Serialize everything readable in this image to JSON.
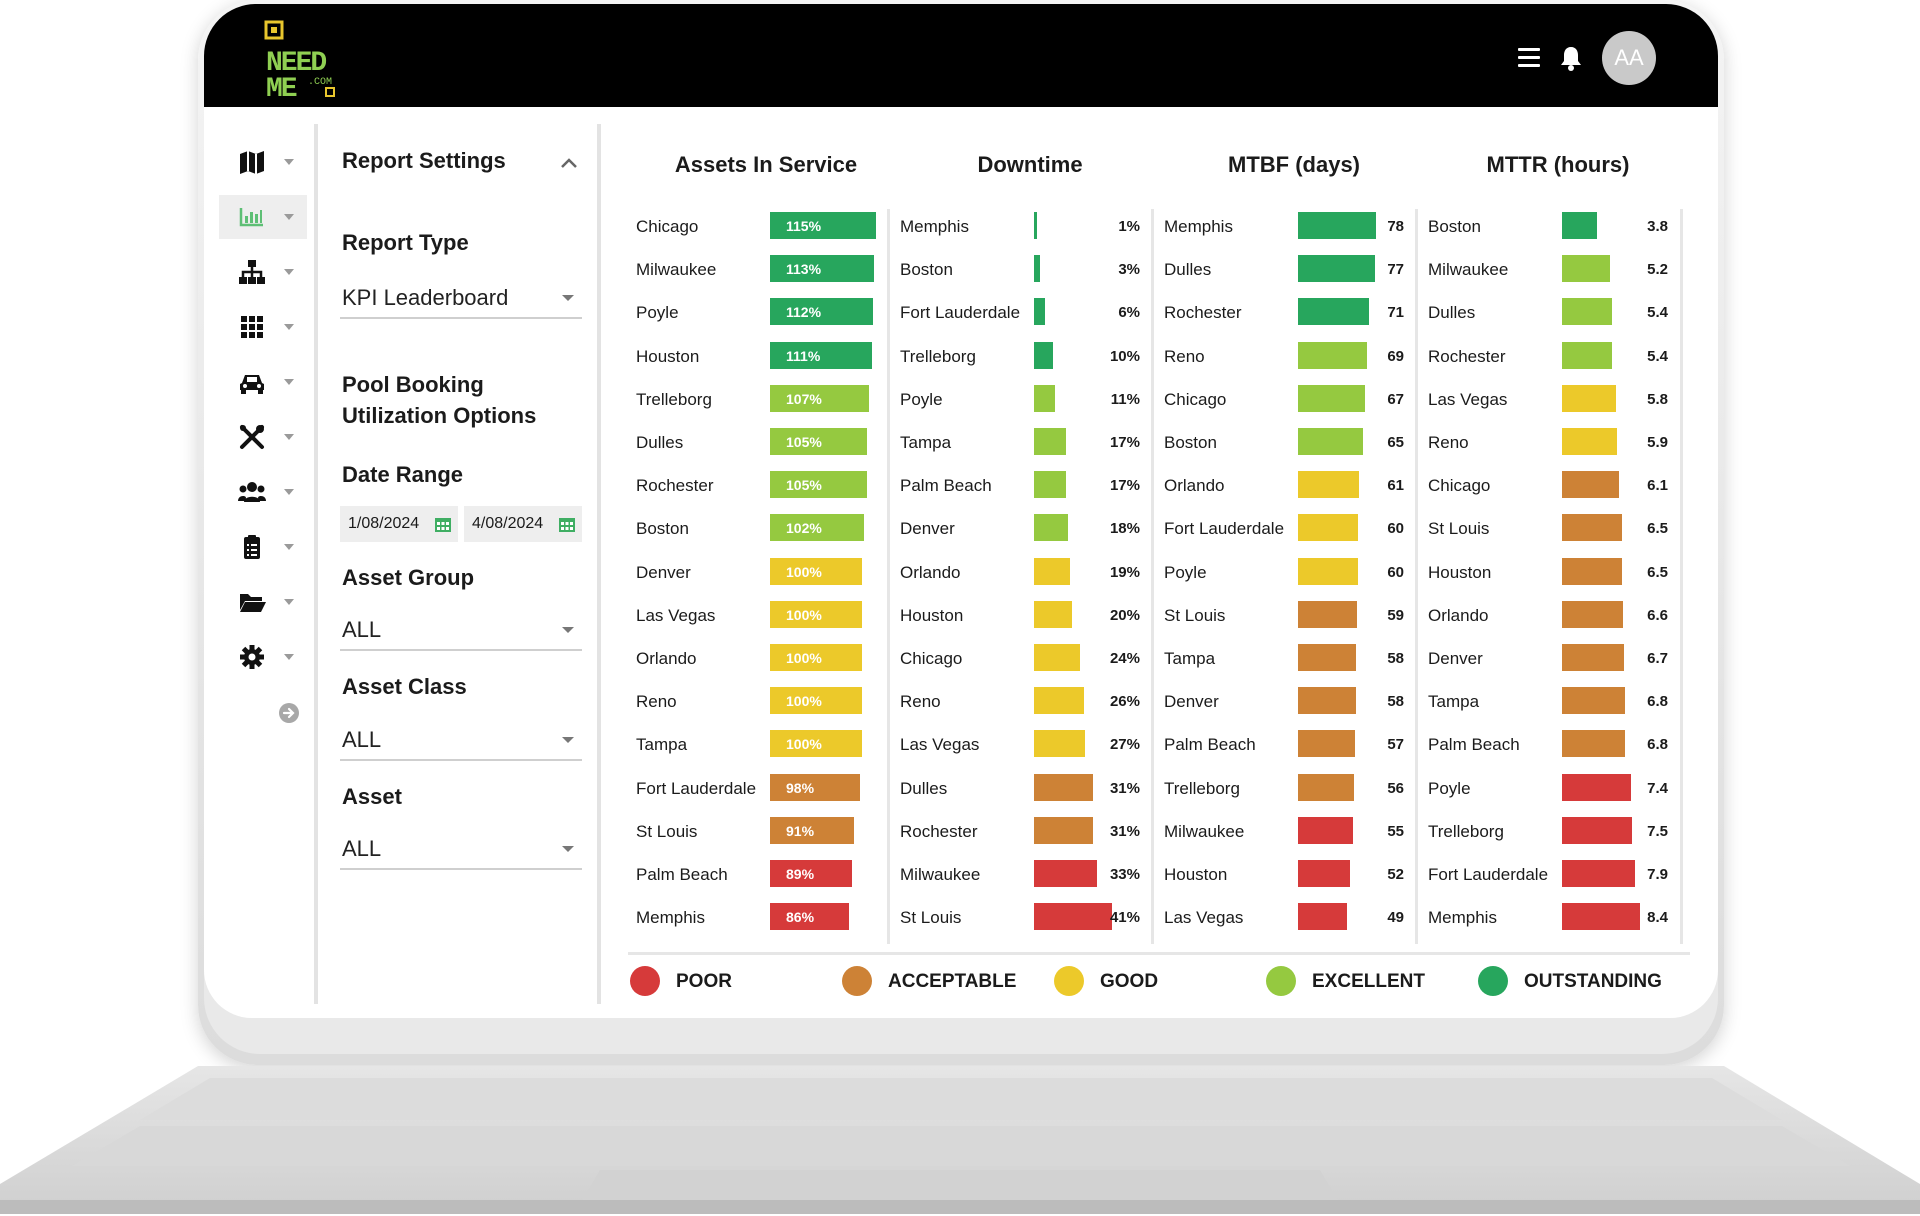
{
  "header": {
    "logo_text": "NEED ME .COM",
    "avatar_initials": "AA"
  },
  "rail": {
    "items": [
      {
        "icon": "map-icon"
      },
      {
        "icon": "bar-chart-icon"
      },
      {
        "icon": "org-chart-icon"
      },
      {
        "icon": "grid-icon"
      },
      {
        "icon": "car-icon"
      },
      {
        "icon": "tools-icon"
      },
      {
        "icon": "users-icon"
      },
      {
        "icon": "clipboard-icon"
      },
      {
        "icon": "folder-icon"
      },
      {
        "icon": "gear-icon"
      }
    ],
    "active_index": 1
  },
  "settings": {
    "title": "Report Settings",
    "report_type_label": "Report Type",
    "report_type_value": "KPI Leaderboard",
    "pool_label_line1": "Pool Booking",
    "pool_label_line2": "Utilization Options",
    "date_range_label": "Date Range",
    "date_start": "1/08/2024",
    "date_end": "4/08/2024",
    "asset_group_label": "Asset Group",
    "asset_group_value": "ALL",
    "asset_class_label": "Asset Class",
    "asset_class_value": "ALL",
    "asset_label": "Asset",
    "asset_value": "ALL"
  },
  "colors": {
    "poor": "#d63a3a",
    "acceptable": "#cd8236",
    "good": "#ecc92a",
    "excellent": "#95c940",
    "outstanding": "#27a65d"
  },
  "legend": [
    {
      "key": "poor",
      "label": "POOR"
    },
    {
      "key": "acceptable",
      "label": "ACCEPTABLE"
    },
    {
      "key": "good",
      "label": "GOOD"
    },
    {
      "key": "excellent",
      "label": "EXCELLENT"
    },
    {
      "key": "outstanding",
      "label": "OUTSTANDING"
    }
  ],
  "chart_data": [
    {
      "type": "bar",
      "title": "Assets In Service",
      "label_position": "inside",
      "unit_suffix": "%",
      "max": 115,
      "rows": [
        {
          "city": "Chicago",
          "value": 115,
          "label": "115%",
          "rating": "outstanding"
        },
        {
          "city": "Milwaukee",
          "value": 113,
          "label": "113%",
          "rating": "outstanding"
        },
        {
          "city": "Poyle",
          "value": 112,
          "label": "112%",
          "rating": "outstanding"
        },
        {
          "city": "Houston",
          "value": 111,
          "label": "111%",
          "rating": "outstanding"
        },
        {
          "city": "Trelleborg",
          "value": 107,
          "label": "107%",
          "rating": "excellent"
        },
        {
          "city": "Dulles",
          "value": 105,
          "label": "105%",
          "rating": "excellent"
        },
        {
          "city": "Rochester",
          "value": 105,
          "label": "105%",
          "rating": "excellent"
        },
        {
          "city": "Boston",
          "value": 102,
          "label": "102%",
          "rating": "excellent"
        },
        {
          "city": "Denver",
          "value": 100,
          "label": "100%",
          "rating": "good"
        },
        {
          "city": "Las Vegas",
          "value": 100,
          "label": "100%",
          "rating": "good"
        },
        {
          "city": "Orlando",
          "value": 100,
          "label": "100%",
          "rating": "good"
        },
        {
          "city": "Reno",
          "value": 100,
          "label": "100%",
          "rating": "good"
        },
        {
          "city": "Tampa",
          "value": 100,
          "label": "100%",
          "rating": "good"
        },
        {
          "city": "Fort Lauderdale",
          "value": 98,
          "label": "98%",
          "rating": "acceptable"
        },
        {
          "city": "St Louis",
          "value": 91,
          "label": "91%",
          "rating": "acceptable"
        },
        {
          "city": "Palm Beach",
          "value": 89,
          "label": "89%",
          "rating": "poor"
        },
        {
          "city": "Memphis",
          "value": 86,
          "label": "86%",
          "rating": "poor"
        }
      ]
    },
    {
      "type": "bar",
      "title": "Downtime",
      "label_position": "outside",
      "max": 41,
      "rows": [
        {
          "city": "Memphis",
          "value": 1,
          "label": "1%",
          "rating": "outstanding"
        },
        {
          "city": "Boston",
          "value": 3,
          "label": "3%",
          "rating": "outstanding"
        },
        {
          "city": "Fort Lauderdale",
          "value": 6,
          "label": "6%",
          "rating": "outstanding"
        },
        {
          "city": "Trelleborg",
          "value": 10,
          "label": "10%",
          "rating": "outstanding"
        },
        {
          "city": "Poyle",
          "value": 11,
          "label": "11%",
          "rating": "excellent"
        },
        {
          "city": "Tampa",
          "value": 17,
          "label": "17%",
          "rating": "excellent"
        },
        {
          "city": "Palm Beach",
          "value": 17,
          "label": "17%",
          "rating": "excellent"
        },
        {
          "city": "Denver",
          "value": 18,
          "label": "18%",
          "rating": "excellent"
        },
        {
          "city": "Orlando",
          "value": 19,
          "label": "19%",
          "rating": "good"
        },
        {
          "city": "Houston",
          "value": 20,
          "label": "20%",
          "rating": "good"
        },
        {
          "city": "Chicago",
          "value": 24,
          "label": "24%",
          "rating": "good"
        },
        {
          "city": "Reno",
          "value": 26,
          "label": "26%",
          "rating": "good"
        },
        {
          "city": "Las Vegas",
          "value": 27,
          "label": "27%",
          "rating": "good"
        },
        {
          "city": "Dulles",
          "value": 31,
          "label": "31%",
          "rating": "acceptable"
        },
        {
          "city": "Rochester",
          "value": 31,
          "label": "31%",
          "rating": "acceptable"
        },
        {
          "city": "Milwaukee",
          "value": 33,
          "label": "33%",
          "rating": "poor"
        },
        {
          "city": "St Louis",
          "value": 41,
          "label": "41%",
          "rating": "poor"
        }
      ]
    },
    {
      "type": "bar",
      "title": "MTBF (days)",
      "label_position": "outside",
      "max": 78,
      "rows": [
        {
          "city": "Memphis",
          "value": 78,
          "label": "78",
          "rating": "outstanding"
        },
        {
          "city": "Dulles",
          "value": 77,
          "label": "77",
          "rating": "outstanding"
        },
        {
          "city": "Rochester",
          "value": 71,
          "label": "71",
          "rating": "outstanding"
        },
        {
          "city": "Reno",
          "value": 69,
          "label": "69",
          "rating": "excellent"
        },
        {
          "city": "Chicago",
          "value": 67,
          "label": "67",
          "rating": "excellent"
        },
        {
          "city": "Boston",
          "value": 65,
          "label": "65",
          "rating": "excellent"
        },
        {
          "city": "Orlando",
          "value": 61,
          "label": "61",
          "rating": "good"
        },
        {
          "city": "Fort Lauderdale",
          "value": 60,
          "label": "60",
          "rating": "good"
        },
        {
          "city": "Poyle",
          "value": 60,
          "label": "60",
          "rating": "good"
        },
        {
          "city": "St Louis",
          "value": 59,
          "label": "59",
          "rating": "acceptable"
        },
        {
          "city": "Tampa",
          "value": 58,
          "label": "58",
          "rating": "acceptable"
        },
        {
          "city": "Denver",
          "value": 58,
          "label": "58",
          "rating": "acceptable"
        },
        {
          "city": "Palm Beach",
          "value": 57,
          "label": "57",
          "rating": "acceptable"
        },
        {
          "city": "Trelleborg",
          "value": 56,
          "label": "56",
          "rating": "acceptable"
        },
        {
          "city": "Milwaukee",
          "value": 55,
          "label": "55",
          "rating": "poor"
        },
        {
          "city": "Houston",
          "value": 52,
          "label": "52",
          "rating": "poor"
        },
        {
          "city": "Las Vegas",
          "value": 49,
          "label": "49",
          "rating": "poor"
        }
      ]
    },
    {
      "type": "bar",
      "title": "MTTR (hours)",
      "label_position": "outside",
      "max": 8.4,
      "rows": [
        {
          "city": "Boston",
          "value": 3.8,
          "label": "3.8",
          "rating": "outstanding"
        },
        {
          "city": "Milwaukee",
          "value": 5.2,
          "label": "5.2",
          "rating": "excellent"
        },
        {
          "city": "Dulles",
          "value": 5.4,
          "label": "5.4",
          "rating": "excellent"
        },
        {
          "city": "Rochester",
          "value": 5.4,
          "label": "5.4",
          "rating": "excellent"
        },
        {
          "city": "Las Vegas",
          "value": 5.8,
          "label": "5.8",
          "rating": "good"
        },
        {
          "city": "Reno",
          "value": 5.9,
          "label": "5.9",
          "rating": "good"
        },
        {
          "city": "Chicago",
          "value": 6.1,
          "label": "6.1",
          "rating": "acceptable"
        },
        {
          "city": "St Louis",
          "value": 6.5,
          "label": "6.5",
          "rating": "acceptable"
        },
        {
          "city": "Houston",
          "value": 6.5,
          "label": "6.5",
          "rating": "acceptable"
        },
        {
          "city": "Orlando",
          "value": 6.6,
          "label": "6.6",
          "rating": "acceptable"
        },
        {
          "city": "Denver",
          "value": 6.7,
          "label": "6.7",
          "rating": "acceptable"
        },
        {
          "city": "Tampa",
          "value": 6.8,
          "label": "6.8",
          "rating": "acceptable"
        },
        {
          "city": "Palm Beach",
          "value": 6.8,
          "label": "6.8",
          "rating": "acceptable"
        },
        {
          "city": "Poyle",
          "value": 7.4,
          "label": "7.4",
          "rating": "poor"
        },
        {
          "city": "Trelleborg",
          "value": 7.5,
          "label": "7.5",
          "rating": "poor"
        },
        {
          "city": "Fort Lauderdale",
          "value": 7.9,
          "label": "7.9",
          "rating": "poor"
        },
        {
          "city": "Memphis",
          "value": 8.4,
          "label": "8.4",
          "rating": "poor"
        }
      ]
    }
  ]
}
